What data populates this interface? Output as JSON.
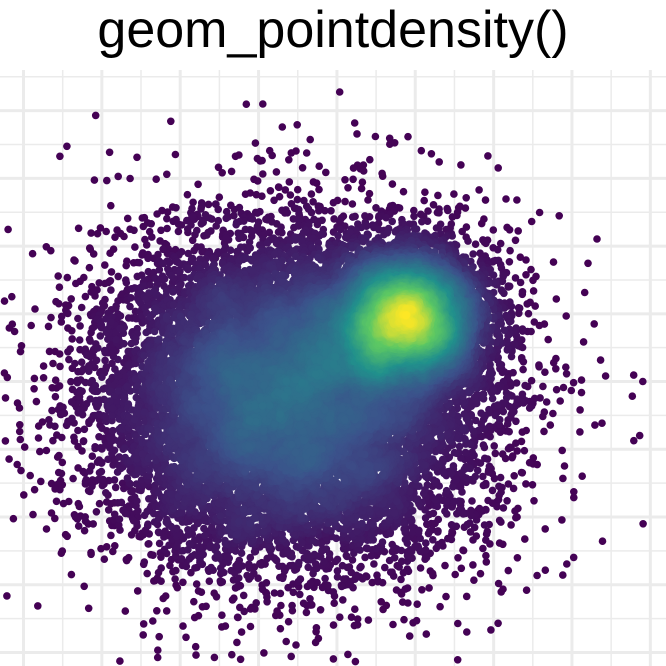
{
  "chart_data": {
    "type": "scatter",
    "title": "geom_pointdensity()",
    "xlabel": "",
    "ylabel": "",
    "xlim": [
      -4.3,
      4.2
    ],
    "ylim": [
      -4.2,
      4.6
    ],
    "grid": true,
    "legend": "none",
    "color_scale": "viridis (by local point density)",
    "n_points": 20000,
    "clusters": [
      {
        "center": [
          0.9,
          0.95
        ],
        "sd": [
          0.5,
          0.5
        ],
        "weight": 0.3
      },
      {
        "center": [
          -0.6,
          -0.25
        ],
        "sd": [
          1.2,
          1.2
        ],
        "weight": 0.7
      }
    ],
    "palette": [
      "#440154",
      "#3b528b",
      "#21908c",
      "#5dc863",
      "#fde725"
    ]
  }
}
